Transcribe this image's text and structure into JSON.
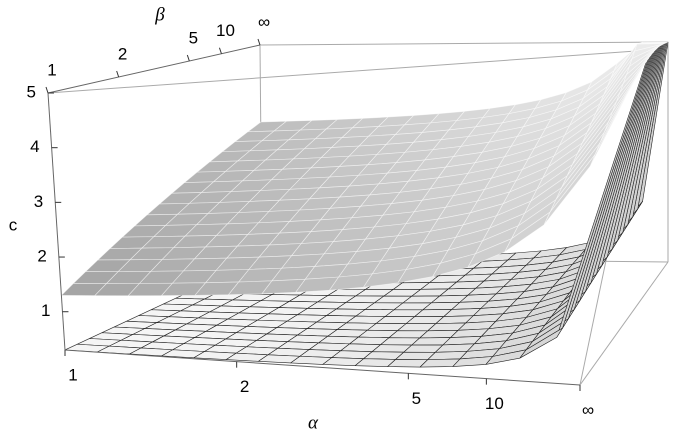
{
  "chart_data": {
    "type": "surface3d",
    "x_label": "α",
    "y_label": "β",
    "z_label": "c",
    "xticks": [
      1,
      2,
      5,
      10,
      {
        "value": null,
        "label": "∞"
      }
    ],
    "yticks": [
      1,
      2,
      5,
      10,
      {
        "value": null,
        "label": "∞"
      }
    ],
    "zlim": [
      0.3,
      5
    ],
    "zticks": [
      1,
      2,
      3,
      4,
      5
    ]
  }
}
